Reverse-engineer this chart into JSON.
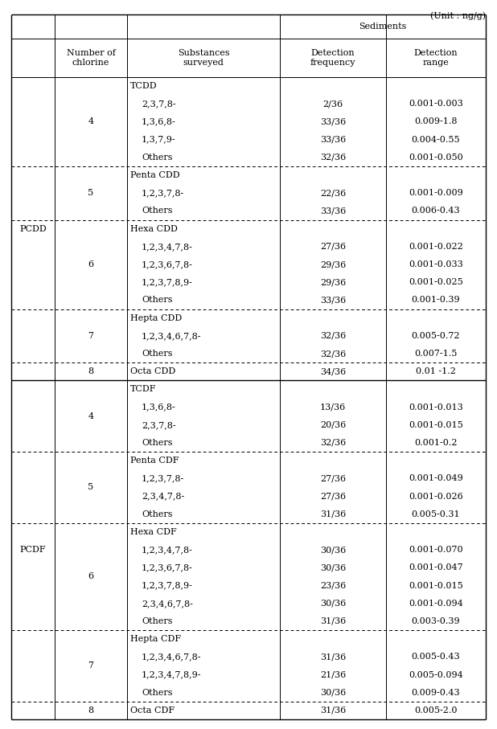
{
  "unit_label": "(Unit : ng/g)",
  "sediments_label": "Sediments",
  "col_headers": [
    "",
    "Number of\nchlorine",
    "Substances\nsurveyed",
    "Detection\nfrequency",
    "Detection\nrange"
  ],
  "rows": [
    {
      "col0": "PCDD",
      "col1": "4",
      "col2": "TCDD",
      "col3": "",
      "col4": "",
      "dashed_below": false,
      "is_cat_header": true
    },
    {
      "col0": "",
      "col1": "",
      "col2": "2,3,7,8-",
      "col3": "2/36",
      "col4": "0.001-0.003",
      "dashed_below": false,
      "is_cat_header": false
    },
    {
      "col0": "",
      "col1": "",
      "col2": "1,3,6,8-",
      "col3": "33/36",
      "col4": "0.009-1.8",
      "dashed_below": false,
      "is_cat_header": false
    },
    {
      "col0": "",
      "col1": "",
      "col2": "1,3,7,9-",
      "col3": "33/36",
      "col4": "0.004-0.55",
      "dashed_below": false,
      "is_cat_header": false
    },
    {
      "col0": "",
      "col1": "",
      "col2": "Others",
      "col3": "32/36",
      "col4": "0.001-0.050",
      "dashed_below": true,
      "is_cat_header": false
    },
    {
      "col0": "",
      "col1": "5",
      "col2": "Penta CDD",
      "col3": "",
      "col4": "",
      "dashed_below": false,
      "is_cat_header": true
    },
    {
      "col0": "",
      "col1": "",
      "col2": "1,2,3,7,8-",
      "col3": "22/36",
      "col4": "0.001-0.009",
      "dashed_below": false,
      "is_cat_header": false
    },
    {
      "col0": "",
      "col1": "",
      "col2": "Others",
      "col3": "33/36",
      "col4": "0.006-0.43",
      "dashed_below": true,
      "is_cat_header": false
    },
    {
      "col0": "",
      "col1": "6",
      "col2": "Hexa CDD",
      "col3": "",
      "col4": "",
      "dashed_below": false,
      "is_cat_header": true
    },
    {
      "col0": "",
      "col1": "",
      "col2": "1,2,3,4,7,8-",
      "col3": "27/36",
      "col4": "0.001-0.022",
      "dashed_below": false,
      "is_cat_header": false
    },
    {
      "col0": "",
      "col1": "",
      "col2": "1,2,3,6,7,8-",
      "col3": "29/36",
      "col4": "0.001-0.033",
      "dashed_below": false,
      "is_cat_header": false
    },
    {
      "col0": "",
      "col1": "",
      "col2": "1,2,3,7,8,9-",
      "col3": "29/36",
      "col4": "0.001-0.025",
      "dashed_below": false,
      "is_cat_header": false
    },
    {
      "col0": "",
      "col1": "",
      "col2": "Others",
      "col3": "33/36",
      "col4": "0.001-0.39",
      "dashed_below": true,
      "is_cat_header": false
    },
    {
      "col0": "",
      "col1": "7",
      "col2": "Hepta CDD",
      "col3": "",
      "col4": "",
      "dashed_below": false,
      "is_cat_header": true
    },
    {
      "col0": "",
      "col1": "",
      "col2": "1,2,3,4,6,7,8-",
      "col3": "32/36",
      "col4": "0.005-0.72",
      "dashed_below": false,
      "is_cat_header": false
    },
    {
      "col0": "",
      "col1": "",
      "col2": "Others",
      "col3": "32/36",
      "col4": "0.007-1.5",
      "dashed_below": true,
      "is_cat_header": false
    },
    {
      "col0": "",
      "col1": "8",
      "col2": "Octa CDD",
      "col3": "34/36",
      "col4": "0.01 -1.2",
      "dashed_below": true,
      "is_cat_header": false
    },
    {
      "col0": "PCDF",
      "col1": "4",
      "col2": "TCDF",
      "col3": "",
      "col4": "",
      "dashed_below": false,
      "is_cat_header": true
    },
    {
      "col0": "",
      "col1": "",
      "col2": "1,3,6,8-",
      "col3": "13/36",
      "col4": "0.001-0.013",
      "dashed_below": false,
      "is_cat_header": false
    },
    {
      "col0": "",
      "col1": "",
      "col2": "2,3,7,8-",
      "col3": "20/36",
      "col4": "0.001-0.015",
      "dashed_below": false,
      "is_cat_header": false
    },
    {
      "col0": "",
      "col1": "",
      "col2": "Others",
      "col3": "32/36",
      "col4": "0.001-0.2",
      "dashed_below": true,
      "is_cat_header": false
    },
    {
      "col0": "",
      "col1": "5",
      "col2": "Penta CDF",
      "col3": "",
      "col4": "",
      "dashed_below": false,
      "is_cat_header": true
    },
    {
      "col0": "",
      "col1": "",
      "col2": "1,2,3,7,8-",
      "col3": "27/36",
      "col4": "0.001-0.049",
      "dashed_below": false,
      "is_cat_header": false
    },
    {
      "col0": "",
      "col1": "",
      "col2": "2,3,4,7,8-",
      "col3": "27/36",
      "col4": "0.001-0.026",
      "dashed_below": false,
      "is_cat_header": false
    },
    {
      "col0": "",
      "col1": "",
      "col2": "Others",
      "col3": "31/36",
      "col4": "0.005-0.31",
      "dashed_below": true,
      "is_cat_header": false
    },
    {
      "col0": "",
      "col1": "6",
      "col2": "Hexa CDF",
      "col3": "",
      "col4": "",
      "dashed_below": false,
      "is_cat_header": true
    },
    {
      "col0": "",
      "col1": "",
      "col2": "1,2,3,4,7,8-",
      "col3": "30/36",
      "col4": "0.001-0.070",
      "dashed_below": false,
      "is_cat_header": false
    },
    {
      "col0": "",
      "col1": "",
      "col2": "1,2,3,6,7,8-",
      "col3": "30/36",
      "col4": "0.001-0.047",
      "dashed_below": false,
      "is_cat_header": false
    },
    {
      "col0": "",
      "col1": "",
      "col2": "1,2,3,7,8,9-",
      "col3": "23/36",
      "col4": "0.001-0.015",
      "dashed_below": false,
      "is_cat_header": false
    },
    {
      "col0": "",
      "col1": "",
      "col2": "2,3,4,6,7,8-",
      "col3": "30/36",
      "col4": "0.001-0.094",
      "dashed_below": false,
      "is_cat_header": false
    },
    {
      "col0": "",
      "col1": "",
      "col2": "Others",
      "col3": "31/36",
      "col4": "0.003-0.39",
      "dashed_below": true,
      "is_cat_header": false
    },
    {
      "col0": "",
      "col1": "7",
      "col2": "Hepta CDF",
      "col3": "",
      "col4": "",
      "dashed_below": false,
      "is_cat_header": true
    },
    {
      "col0": "",
      "col1": "",
      "col2": "1,2,3,4,6,7,8-",
      "col3": "31/36",
      "col4": "0.005-0.43",
      "dashed_below": false,
      "is_cat_header": false
    },
    {
      "col0": "",
      "col1": "",
      "col2": "1,2,3,4,7,8,9-",
      "col3": "21/36",
      "col4": "0.005-0.094",
      "dashed_below": false,
      "is_cat_header": false
    },
    {
      "col0": "",
      "col1": "",
      "col2": "Others",
      "col3": "30/36",
      "col4": "0.009-0.43",
      "dashed_below": true,
      "is_cat_header": false
    },
    {
      "col0": "",
      "col1": "8",
      "col2": "Octa CDF",
      "col3": "31/36",
      "col4": "0.005-2.0",
      "dashed_below": false,
      "is_cat_header": false
    }
  ],
  "font_size": 8.0,
  "bg_color": "#ffffff",
  "text_color": "#000000"
}
